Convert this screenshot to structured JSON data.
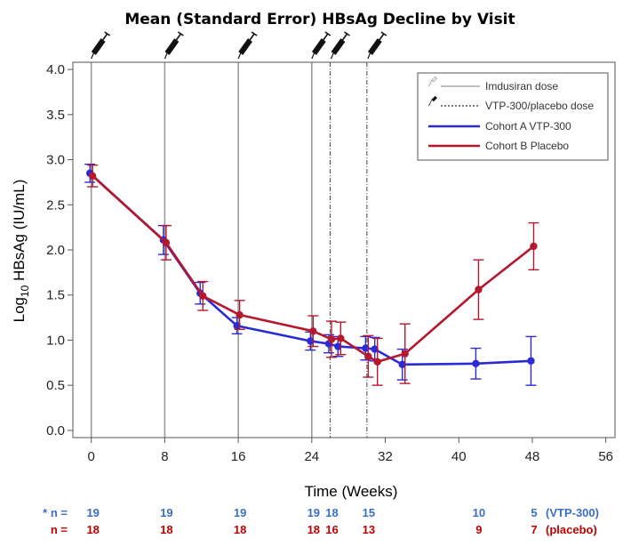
{
  "chart_data": {
    "type": "line",
    "title": "Mean (Standard Error) HBsAg Decline by Visit",
    "xlabel": "Time (Weeks)",
    "ylabel_prefix": "Log",
    "ylabel_sub": "10",
    "ylabel_suffix": " HBsAg (IU/mL)",
    "xlim": [
      -2,
      57
    ],
    "ylim": [
      -0.08,
      4.08
    ],
    "x_ticks": [
      0,
      8,
      16,
      24,
      32,
      40,
      48,
      56
    ],
    "y_ticks": [
      0.0,
      0.5,
      1.0,
      1.5,
      2.0,
      2.5,
      3.0,
      3.5,
      4.0
    ],
    "imdusiran_dose_weeks": [
      0,
      8,
      16,
      24
    ],
    "vtp300_placebo_dose_weeks": [
      26,
      30
    ],
    "legend": {
      "position": "top-right",
      "entries": [
        "Imdusiran dose",
        "VTP-300/placebo dose",
        "Cohort A VTP-300",
        "Cohort B Placebo"
      ]
    },
    "series": [
      {
        "name": "Cohort A VTP-300",
        "color": "#2b2bd6",
        "x": [
          0,
          8,
          12,
          16,
          24,
          26,
          27,
          30,
          31,
          34,
          42,
          48
        ],
        "y": [
          2.85,
          2.11,
          1.52,
          1.16,
          0.99,
          0.96,
          0.93,
          0.91,
          0.9,
          0.73,
          0.74,
          0.77
        ],
        "err": [
          0.1,
          0.16,
          0.12,
          0.09,
          0.1,
          0.1,
          0.11,
          0.13,
          0.13,
          0.17,
          0.17,
          0.27
        ]
      },
      {
        "name": "Cohort B Placebo",
        "color": "#b5192e",
        "x": [
          0,
          8,
          12,
          16,
          24,
          26,
          27,
          30,
          31,
          34,
          42,
          48
        ],
        "y": [
          2.82,
          2.08,
          1.49,
          1.28,
          1.1,
          1.01,
          1.02,
          0.82,
          0.76,
          0.85,
          1.56,
          2.04
        ],
        "err": [
          0.12,
          0.19,
          0.16,
          0.16,
          0.17,
          0.2,
          0.18,
          0.23,
          0.26,
          0.33,
          0.33,
          0.26
        ]
      }
    ]
  },
  "n_rows": {
    "vtp": {
      "label": "* n =",
      "values": [
        "19",
        "19",
        "19",
        "19",
        "18",
        "15",
        "10",
        "5"
      ],
      "suffix": "(VTP-300)",
      "color": "#3b6fc7"
    },
    "placebo": {
      "label": "n =",
      "values": [
        "18",
        "18",
        "18",
        "18",
        "16",
        "13",
        "9",
        "7"
      ],
      "suffix": "(placebo)",
      "color": "#c00000"
    }
  }
}
